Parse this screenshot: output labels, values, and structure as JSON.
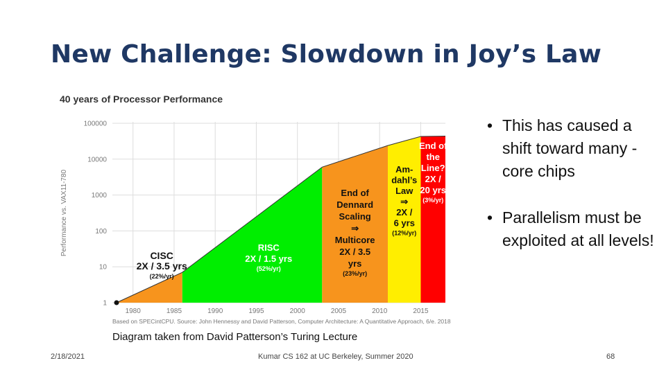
{
  "slide": {
    "title": "New Challenge: Slowdown in Joy’s Law",
    "bullets": [
      "This has caused a shift toward many -core chips",
      "Parallelism must be exploited at all levels!"
    ],
    "caption": "Diagram taken from David Patterson’s Turing Lecture",
    "footer": {
      "date": "2/18/2021",
      "course": "Kumar CS 162 at UC Berkeley, Summer 2020",
      "page": "68"
    }
  },
  "chart_data": {
    "type": "area",
    "title": "40 years of Processor Performance",
    "ylabel": "Performance vs. VAX11-780",
    "xlabel": "",
    "yscale": "log",
    "ylim": [
      1,
      100000
    ],
    "xlim": [
      1978,
      2018
    ],
    "y_ticks": [
      "1",
      "10",
      "100",
      "1000",
      "10000",
      "100000"
    ],
    "x_ticks": [
      "1980",
      "1985",
      "1990",
      "1995",
      "2000",
      "2005",
      "2010",
      "2015"
    ],
    "grid": true,
    "source": "Based on SPECintCPU. Source: John Hennessy and David Patterson, Computer Architecture: A Quantitative Approach, 6/e. 2018",
    "points": [
      {
        "x": 1978,
        "y": 1
      },
      {
        "x": 1986,
        "y": 7
      },
      {
        "x": 2003,
        "y": 6000
      },
      {
        "x": 2011,
        "y": 24000
      },
      {
        "x": 2015,
        "y": 43000
      },
      {
        "x": 2018,
        "y": 44000
      }
    ],
    "regions": [
      {
        "name": "CISC",
        "x_start": 1978,
        "x_end": 1986,
        "color": "#f7941d",
        "label_lines": [
          "CISC",
          "2X / 3.5 yrs"
        ],
        "rate": "(22%/yr)"
      },
      {
        "name": "RISC",
        "x_start": 1986,
        "x_end": 2003,
        "color": "#00ee00",
        "label_lines": [
          "RISC",
          "2X / 1.5 yrs"
        ],
        "rate": "(52%/yr)"
      },
      {
        "name": "End of Dennard Scaling",
        "x_start": 2003,
        "x_end": 2011,
        "color": "#f7941d",
        "label_lines": [
          "End of",
          "Dennard",
          "Scaling",
          "⇒",
          "Multicore",
          "2X / 3.5",
          "yrs"
        ],
        "rate": "(23%/yr)"
      },
      {
        "name": "Amdahl's Law",
        "x_start": 2011,
        "x_end": 2015,
        "color": "#ffee00",
        "label_lines": [
          "Am-",
          "dahl’s",
          "Law",
          "⇒",
          "2X /",
          "6 yrs"
        ],
        "rate": "(12%/yr)"
      },
      {
        "name": "End of the Line",
        "x_start": 2015,
        "x_end": 2018,
        "color": "#ff0000",
        "label_lines": [
          "End of",
          "the",
          "Line?",
          "2X /",
          "20 yrs"
        ],
        "rate": "(3%/yr)"
      }
    ]
  }
}
